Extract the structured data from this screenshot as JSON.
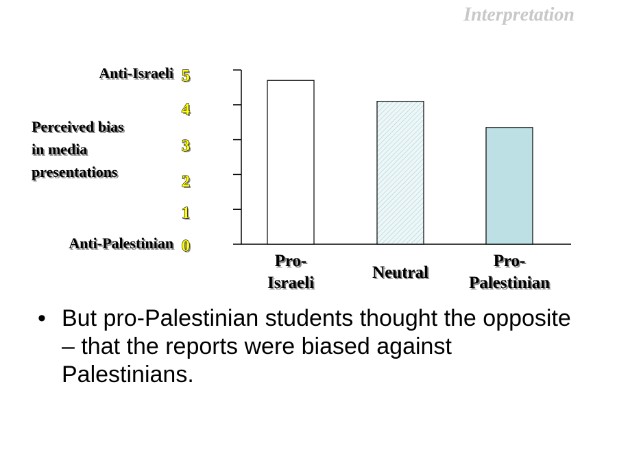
{
  "slide": {
    "label": "Interpretation",
    "bullet": "But pro-Palestinian students thought the opposite – that the reports were biased against Palestinians."
  },
  "chart_data": {
    "type": "bar",
    "categories": [
      [
        "Pro-",
        "Israeli"
      ],
      [
        "Neutral"
      ],
      [
        "Pro-",
        "Palestinian"
      ]
    ],
    "values": [
      4.7,
      4.1,
      3.35
    ],
    "ylim": [
      0,
      5
    ],
    "yticks": [
      0,
      1,
      2,
      3,
      4,
      5
    ],
    "ylabel": [
      "Perceived bias",
      "in media",
      "presentations"
    ],
    "y_top_label": "Anti-Israeli",
    "y_bottom_label": "Anti-Palestinian",
    "bar_styles": [
      "plain-white",
      "hatched-light-blue",
      "solid-light-blue"
    ],
    "colors": {
      "fill_1": "#ffffff",
      "fill_2": "#e8f4f6",
      "fill_3": "#bde0e4",
      "tick_labels": "#ffff00"
    },
    "grid": false
  }
}
